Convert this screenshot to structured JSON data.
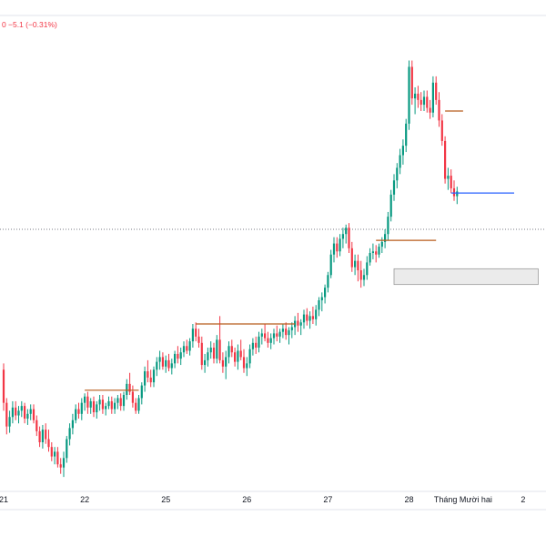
{
  "header": {
    "price_fragment": "0",
    "change_text": "−5.1 (−0.31%)"
  },
  "colors": {
    "up": "#089981",
    "down": "#f23645",
    "level_orange": "#b85c1c",
    "level_blue": "#2962ff",
    "dotted": "#787b86",
    "zone_fill": "#ebebeb",
    "zone_border": "#9a9a9a",
    "axis_text": "#131722",
    "header_red": "#f23645"
  },
  "chart_data": {
    "type": "candlestick",
    "title": "",
    "xlabel": "",
    "ylabel": "",
    "ylim": [
      1550,
      1850
    ],
    "x_ticks": [
      {
        "label": "21",
        "index": 0
      },
      {
        "label": "22",
        "index": 27
      },
      {
        "label": "25",
        "index": 54
      },
      {
        "label": "26",
        "index": 81
      },
      {
        "label": "27",
        "index": 108
      },
      {
        "label": "28",
        "index": 135
      },
      {
        "label": "Tháng Mười hai",
        "index": 153
      },
      {
        "label": "2",
        "index": 173
      }
    ],
    "dotted_level": 1715,
    "levels": [
      {
        "color": "orange",
        "start": 27,
        "end": 45,
        "price": 1613
      },
      {
        "color": "orange",
        "start": 64,
        "end": 97,
        "price": 1655
      },
      {
        "color": "orange",
        "start": 124,
        "end": 144,
        "price": 1708
      },
      {
        "color": "orange",
        "start": 147,
        "end": 153,
        "price": 1790
      },
      {
        "color": "blue",
        "start": 149,
        "end": 170,
        "price": 1738
      }
    ],
    "zones": [
      {
        "start": 130,
        "end": 178,
        "top": 1690,
        "bottom": 1680
      }
    ],
    "series": [
      {
        "name": "candles",
        "ohlc": [
          [
            1626,
            1630,
            1600,
            1605
          ],
          [
            1605,
            1608,
            1585,
            1590
          ],
          [
            1590,
            1600,
            1586,
            1596
          ],
          [
            1596,
            1606,
            1592,
            1602
          ],
          [
            1602,
            1606,
            1594,
            1597
          ],
          [
            1597,
            1603,
            1592,
            1600
          ],
          [
            1600,
            1606,
            1596,
            1603
          ],
          [
            1603,
            1605,
            1592,
            1595
          ],
          [
            1595,
            1601,
            1591,
            1598
          ],
          [
            1598,
            1604,
            1594,
            1601
          ],
          [
            1601,
            1604,
            1592,
            1594
          ],
          [
            1594,
            1597,
            1584,
            1587
          ],
          [
            1587,
            1590,
            1577,
            1580
          ],
          [
            1580,
            1591,
            1576,
            1588
          ],
          [
            1588,
            1592,
            1579,
            1582
          ],
          [
            1582,
            1588,
            1574,
            1577
          ],
          [
            1577,
            1580,
            1568,
            1571
          ],
          [
            1571,
            1577,
            1566,
            1574
          ],
          [
            1574,
            1577,
            1564,
            1566
          ],
          [
            1566,
            1570,
            1560,
            1564
          ],
          [
            1564,
            1574,
            1558,
            1570
          ],
          [
            1570,
            1584,
            1567,
            1582
          ],
          [
            1582,
            1592,
            1578,
            1589
          ],
          [
            1589,
            1598,
            1585,
            1594
          ],
          [
            1594,
            1604,
            1592,
            1601
          ],
          [
            1601,
            1605,
            1595,
            1598
          ],
          [
            1598,
            1608,
            1594,
            1605
          ],
          [
            1605,
            1611,
            1600,
            1609
          ],
          [
            1609,
            1612,
            1598,
            1602
          ],
          [
            1602,
            1608,
            1598,
            1606
          ],
          [
            1606,
            1609,
            1596,
            1599
          ],
          [
            1599,
            1606,
            1595,
            1604
          ],
          [
            1604,
            1610,
            1600,
            1607
          ],
          [
            1607,
            1610,
            1598,
            1601
          ],
          [
            1601,
            1605,
            1597,
            1603
          ],
          [
            1603,
            1609,
            1601,
            1606
          ],
          [
            1606,
            1609,
            1598,
            1601
          ],
          [
            1601,
            1608,
            1598,
            1605
          ],
          [
            1605,
            1610,
            1601,
            1608
          ],
          [
            1608,
            1611,
            1600,
            1603
          ],
          [
            1603,
            1612,
            1600,
            1610
          ],
          [
            1610,
            1620,
            1607,
            1617
          ],
          [
            1617,
            1624,
            1610,
            1612
          ],
          [
            1612,
            1616,
            1602,
            1605
          ],
          [
            1605,
            1608,
            1598,
            1600
          ],
          [
            1600,
            1610,
            1598,
            1608
          ],
          [
            1608,
            1618,
            1604,
            1616
          ],
          [
            1616,
            1628,
            1612,
            1625
          ],
          [
            1625,
            1632,
            1618,
            1621
          ],
          [
            1621,
            1626,
            1615,
            1618
          ],
          [
            1618,
            1628,
            1615,
            1626
          ],
          [
            1626,
            1634,
            1622,
            1631
          ],
          [
            1631,
            1638,
            1626,
            1634
          ],
          [
            1634,
            1637,
            1626,
            1628
          ],
          [
            1628,
            1635,
            1624,
            1632
          ],
          [
            1632,
            1636,
            1625,
            1627
          ],
          [
            1627,
            1633,
            1623,
            1630
          ],
          [
            1630,
            1638,
            1627,
            1636
          ],
          [
            1636,
            1641,
            1630,
            1633
          ],
          [
            1633,
            1640,
            1629,
            1637
          ],
          [
            1637,
            1644,
            1634,
            1641
          ],
          [
            1641,
            1645,
            1636,
            1638
          ],
          [
            1638,
            1646,
            1635,
            1644
          ],
          [
            1644,
            1655,
            1640,
            1652
          ],
          [
            1652,
            1656,
            1644,
            1647
          ],
          [
            1647,
            1652,
            1640,
            1643
          ],
          [
            1643,
            1647,
            1626,
            1629
          ],
          [
            1629,
            1636,
            1624,
            1632
          ],
          [
            1632,
            1640,
            1628,
            1637
          ],
          [
            1637,
            1644,
            1633,
            1640
          ],
          [
            1640,
            1643,
            1630,
            1633
          ],
          [
            1633,
            1648,
            1630,
            1645
          ],
          [
            1645,
            1660,
            1630,
            1632
          ],
          [
            1632,
            1637,
            1624,
            1628
          ],
          [
            1628,
            1638,
            1620,
            1634
          ],
          [
            1634,
            1644,
            1630,
            1641
          ],
          [
            1641,
            1645,
            1634,
            1637
          ],
          [
            1637,
            1640,
            1628,
            1631
          ],
          [
            1631,
            1642,
            1626,
            1638
          ],
          [
            1638,
            1645,
            1632,
            1634
          ],
          [
            1634,
            1639,
            1624,
            1627
          ],
          [
            1627,
            1634,
            1622,
            1630
          ],
          [
            1630,
            1642,
            1627,
            1639
          ],
          [
            1639,
            1646,
            1635,
            1643
          ],
          [
            1643,
            1647,
            1636,
            1640
          ],
          [
            1640,
            1650,
            1637,
            1647
          ],
          [
            1647,
            1652,
            1642,
            1649
          ],
          [
            1649,
            1655,
            1644,
            1646
          ],
          [
            1646,
            1650,
            1640,
            1643
          ],
          [
            1643,
            1649,
            1639,
            1646
          ],
          [
            1646,
            1652,
            1642,
            1649
          ],
          [
            1649,
            1654,
            1644,
            1647
          ],
          [
            1647,
            1652,
            1643,
            1650
          ],
          [
            1650,
            1655,
            1646,
            1652
          ],
          [
            1652,
            1656,
            1645,
            1648
          ],
          [
            1648,
            1653,
            1642,
            1651
          ],
          [
            1651,
            1656,
            1646,
            1653
          ],
          [
            1653,
            1660,
            1648,
            1657
          ],
          [
            1657,
            1662,
            1650,
            1654
          ],
          [
            1654,
            1658,
            1648,
            1656
          ],
          [
            1656,
            1664,
            1652,
            1661
          ],
          [
            1661,
            1665,
            1654,
            1657
          ],
          [
            1657,
            1663,
            1652,
            1660
          ],
          [
            1660,
            1666,
            1655,
            1658
          ],
          [
            1658,
            1667,
            1654,
            1664
          ],
          [
            1664,
            1672,
            1660,
            1670
          ],
          [
            1670,
            1675,
            1663,
            1672
          ],
          [
            1672,
            1680,
            1668,
            1678
          ],
          [
            1678,
            1688,
            1675,
            1686
          ],
          [
            1686,
            1702,
            1684,
            1699
          ],
          [
            1699,
            1710,
            1694,
            1706
          ],
          [
            1706,
            1710,
            1697,
            1701
          ],
          [
            1701,
            1712,
            1698,
            1709
          ],
          [
            1709,
            1716,
            1703,
            1712
          ],
          [
            1712,
            1718,
            1706,
            1716
          ],
          [
            1716,
            1719,
            1700,
            1703
          ],
          [
            1703,
            1707,
            1688,
            1691
          ],
          [
            1691,
            1699,
            1686,
            1695
          ],
          [
            1695,
            1699,
            1682,
            1689
          ],
          [
            1689,
            1695,
            1678,
            1683
          ],
          [
            1683,
            1690,
            1679,
            1686
          ],
          [
            1686,
            1698,
            1683,
            1694
          ],
          [
            1694,
            1703,
            1692,
            1700
          ],
          [
            1700,
            1706,
            1696,
            1701
          ],
          [
            1701,
            1705,
            1694,
            1699
          ],
          [
            1699,
            1706,
            1697,
            1704
          ],
          [
            1704,
            1710,
            1700,
            1707
          ],
          [
            1707,
            1715,
            1703,
            1712
          ],
          [
            1712,
            1726,
            1708,
            1723
          ],
          [
            1723,
            1740,
            1720,
            1737
          ],
          [
            1737,
            1750,
            1733,
            1746
          ],
          [
            1746,
            1757,
            1741,
            1754
          ],
          [
            1754,
            1766,
            1750,
            1762
          ],
          [
            1762,
            1772,
            1756,
            1768
          ],
          [
            1768,
            1785,
            1764,
            1782
          ],
          [
            1782,
            1822,
            1778,
            1818
          ],
          [
            1818,
            1822,
            1794,
            1798
          ],
          [
            1798,
            1805,
            1788,
            1801
          ],
          [
            1801,
            1806,
            1792,
            1797
          ],
          [
            1797,
            1802,
            1790,
            1794
          ],
          [
            1794,
            1803,
            1790,
            1799
          ],
          [
            1799,
            1803,
            1789,
            1792
          ],
          [
            1792,
            1797,
            1785,
            1789
          ],
          [
            1789,
            1812,
            1786,
            1808
          ],
          [
            1808,
            1812,
            1794,
            1797
          ],
          [
            1797,
            1802,
            1780,
            1784
          ],
          [
            1784,
            1788,
            1768,
            1771
          ],
          [
            1771,
            1774,
            1744,
            1747
          ],
          [
            1747,
            1754,
            1740,
            1749
          ],
          [
            1749,
            1753,
            1738,
            1741
          ],
          [
            1741,
            1746,
            1733,
            1736
          ],
          [
            1736,
            1742,
            1731,
            1739
          ]
        ]
      }
    ]
  }
}
